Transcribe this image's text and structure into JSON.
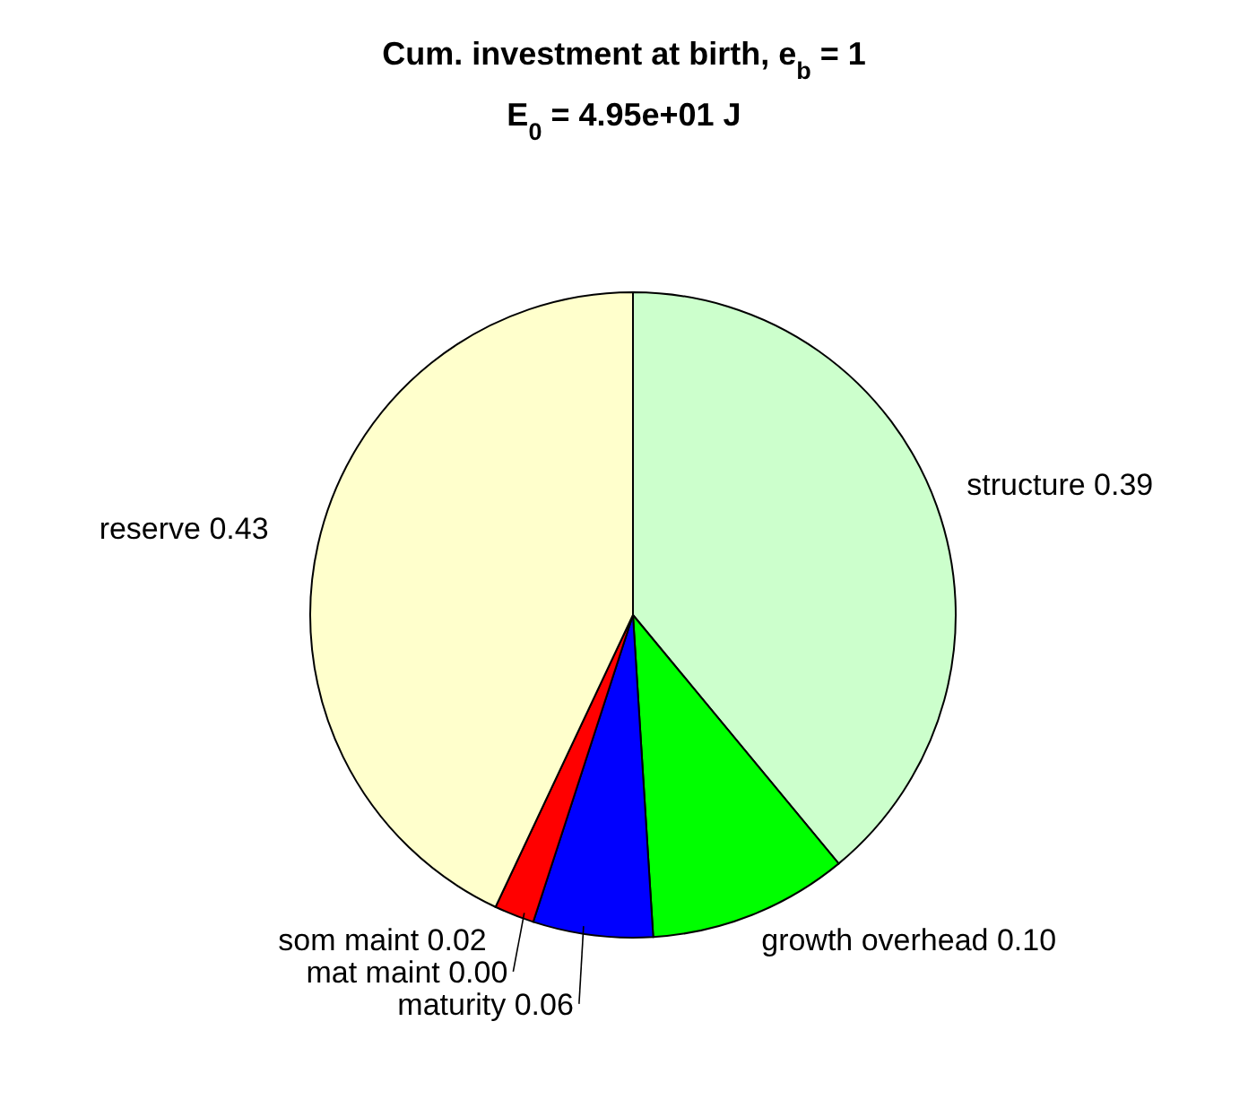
{
  "chart_data": {
    "type": "pie",
    "title": "Cum. investment at birth, e$_{b}$ = 1",
    "subtitle": "E$_{0}$ = 4.95e+01 J",
    "categories": [
      "structure",
      "growth overhead",
      "maturity",
      "mat maint",
      "som maint",
      "reserve"
    ],
    "values": [
      0.39,
      0.1,
      0.06,
      0.0,
      0.02,
      0.43
    ],
    "value_labels": [
      "0.39",
      "0.10",
      "0.06",
      "0.00",
      "0.02",
      "0.43"
    ],
    "colors": [
      "#ccffcc",
      "#00ff00",
      "#0000ff",
      "#ffffff",
      "#ff0000",
      "#ffffcc"
    ],
    "legend": false
  }
}
